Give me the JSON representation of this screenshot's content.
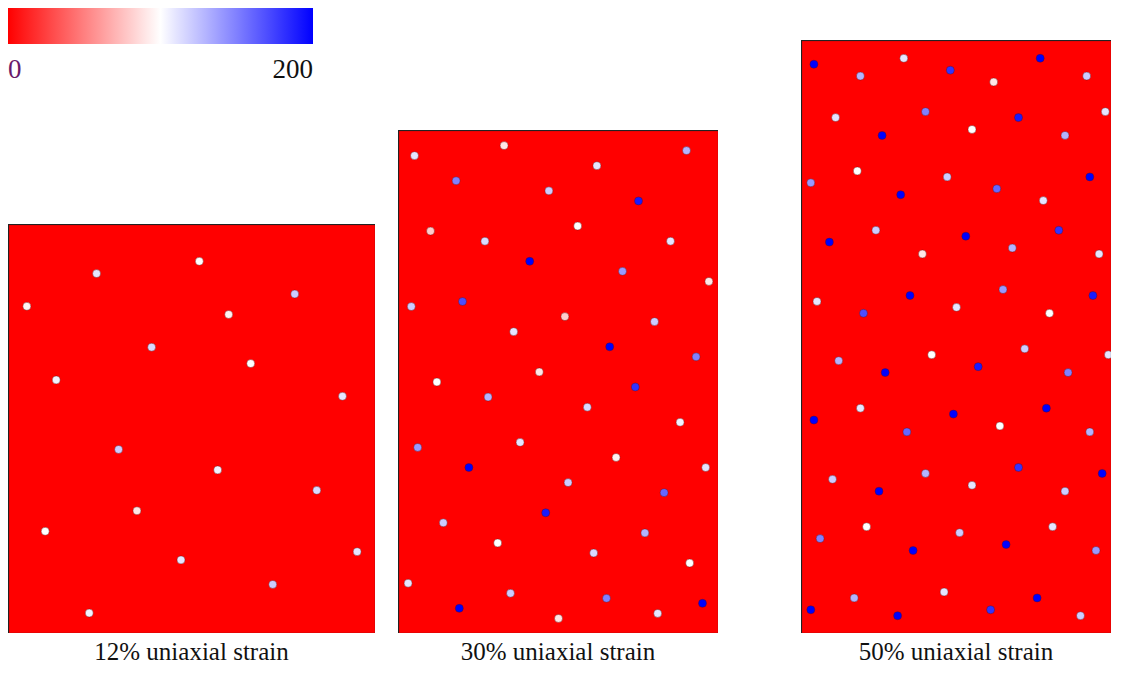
{
  "colorbar": {
    "range": [
      0,
      200
    ],
    "ticks": [
      0,
      200
    ]
  },
  "chart_data": [
    {
      "type": "scatter",
      "title": "12% uniaxial strain",
      "xlim": [
        0,
        1
      ],
      "ylim": [
        0,
        1
      ],
      "tick_labels": false,
      "background": 0,
      "points": [
        [
          0.24,
          0.88,
          110
        ],
        [
          0.52,
          0.91,
          100
        ],
        [
          0.78,
          0.83,
          120
        ],
        [
          0.13,
          0.62,
          105
        ],
        [
          0.39,
          0.7,
          115
        ],
        [
          0.66,
          0.66,
          100
        ],
        [
          0.91,
          0.58,
          110
        ],
        [
          0.3,
          0.45,
          120
        ],
        [
          0.57,
          0.4,
          105
        ],
        [
          0.84,
          0.35,
          115
        ],
        [
          0.1,
          0.25,
          100
        ],
        [
          0.47,
          0.18,
          110
        ],
        [
          0.72,
          0.12,
          120
        ],
        [
          0.22,
          0.05,
          105
        ],
        [
          0.95,
          0.2,
          110
        ],
        [
          0.6,
          0.78,
          95
        ],
        [
          0.35,
          0.3,
          90
        ],
        [
          0.05,
          0.8,
          95
        ]
      ]
    },
    {
      "type": "scatter",
      "title": "30% uniaxial strain",
      "xlim": [
        0,
        1
      ],
      "ylim": [
        0,
        1
      ],
      "tick_labels": false,
      "background": 0,
      "points": [
        [
          0.05,
          0.95,
          110
        ],
        [
          0.18,
          0.9,
          150
        ],
        [
          0.33,
          0.97,
          90
        ],
        [
          0.47,
          0.88,
          120
        ],
        [
          0.62,
          0.93,
          110
        ],
        [
          0.75,
          0.86,
          190
        ],
        [
          0.9,
          0.96,
          130
        ],
        [
          0.1,
          0.8,
          80
        ],
        [
          0.27,
          0.78,
          115
        ],
        [
          0.41,
          0.74,
          200
        ],
        [
          0.56,
          0.81,
          100
        ],
        [
          0.7,
          0.72,
          140
        ],
        [
          0.85,
          0.78,
          110
        ],
        [
          0.97,
          0.7,
          90
        ],
        [
          0.04,
          0.65,
          120
        ],
        [
          0.2,
          0.66,
          170
        ],
        [
          0.36,
          0.6,
          110
        ],
        [
          0.52,
          0.63,
          80
        ],
        [
          0.66,
          0.57,
          200
        ],
        [
          0.8,
          0.62,
          120
        ],
        [
          0.93,
          0.55,
          150
        ],
        [
          0.12,
          0.5,
          100
        ],
        [
          0.28,
          0.47,
          130
        ],
        [
          0.44,
          0.52,
          90
        ],
        [
          0.59,
          0.45,
          115
        ],
        [
          0.74,
          0.49,
          180
        ],
        [
          0.88,
          0.42,
          105
        ],
        [
          0.06,
          0.37,
          140
        ],
        [
          0.22,
          0.33,
          200
        ],
        [
          0.38,
          0.38,
          110
        ],
        [
          0.53,
          0.3,
          120
        ],
        [
          0.68,
          0.35,
          95
        ],
        [
          0.83,
          0.28,
          160
        ],
        [
          0.96,
          0.33,
          110
        ],
        [
          0.14,
          0.22,
          120
        ],
        [
          0.31,
          0.18,
          100
        ],
        [
          0.46,
          0.24,
          190
        ],
        [
          0.61,
          0.16,
          115
        ],
        [
          0.77,
          0.2,
          130
        ],
        [
          0.91,
          0.14,
          100
        ],
        [
          0.03,
          0.1,
          110
        ],
        [
          0.19,
          0.05,
          200
        ],
        [
          0.35,
          0.08,
          120
        ],
        [
          0.5,
          0.03,
          90
        ],
        [
          0.65,
          0.07,
          150
        ],
        [
          0.81,
          0.04,
          110
        ],
        [
          0.95,
          0.06,
          200
        ]
      ]
    },
    {
      "type": "scatter",
      "title": "50% uniaxial strain",
      "xlim": [
        0,
        1
      ],
      "ylim": [
        0,
        1
      ],
      "tick_labels": false,
      "background": 0,
      "points": [
        [
          0.04,
          0.96,
          200
        ],
        [
          0.19,
          0.94,
          130
        ],
        [
          0.33,
          0.97,
          110
        ],
        [
          0.48,
          0.95,
          180
        ],
        [
          0.62,
          0.93,
          90
        ],
        [
          0.77,
          0.97,
          200
        ],
        [
          0.92,
          0.94,
          120
        ],
        [
          0.11,
          0.87,
          110
        ],
        [
          0.26,
          0.84,
          200
        ],
        [
          0.4,
          0.88,
          150
        ],
        [
          0.55,
          0.85,
          100
        ],
        [
          0.7,
          0.87,
          190
        ],
        [
          0.85,
          0.84,
          130
        ],
        [
          0.98,
          0.88,
          110
        ],
        [
          0.03,
          0.76,
          140
        ],
        [
          0.18,
          0.78,
          100
        ],
        [
          0.32,
          0.74,
          200
        ],
        [
          0.47,
          0.77,
          120
        ],
        [
          0.63,
          0.75,
          160
        ],
        [
          0.78,
          0.73,
          110
        ],
        [
          0.93,
          0.77,
          200
        ],
        [
          0.09,
          0.66,
          200
        ],
        [
          0.24,
          0.68,
          120
        ],
        [
          0.39,
          0.64,
          90
        ],
        [
          0.53,
          0.67,
          200
        ],
        [
          0.68,
          0.65,
          130
        ],
        [
          0.83,
          0.68,
          180
        ],
        [
          0.96,
          0.64,
          110
        ],
        [
          0.05,
          0.56,
          110
        ],
        [
          0.2,
          0.54,
          170
        ],
        [
          0.35,
          0.57,
          200
        ],
        [
          0.5,
          0.55,
          110
        ],
        [
          0.65,
          0.58,
          140
        ],
        [
          0.8,
          0.54,
          100
        ],
        [
          0.94,
          0.57,
          190
        ],
        [
          0.12,
          0.46,
          130
        ],
        [
          0.27,
          0.44,
          200
        ],
        [
          0.42,
          0.47,
          100
        ],
        [
          0.57,
          0.45,
          190
        ],
        [
          0.72,
          0.48,
          120
        ],
        [
          0.86,
          0.44,
          150
        ],
        [
          0.99,
          0.47,
          110
        ],
        [
          0.04,
          0.36,
          200
        ],
        [
          0.19,
          0.38,
          110
        ],
        [
          0.34,
          0.34,
          160
        ],
        [
          0.49,
          0.37,
          200
        ],
        [
          0.64,
          0.35,
          100
        ],
        [
          0.79,
          0.38,
          200
        ],
        [
          0.93,
          0.34,
          130
        ],
        [
          0.1,
          0.26,
          120
        ],
        [
          0.25,
          0.24,
          200
        ],
        [
          0.4,
          0.27,
          130
        ],
        [
          0.55,
          0.25,
          110
        ],
        [
          0.7,
          0.28,
          180
        ],
        [
          0.85,
          0.24,
          120
        ],
        [
          0.97,
          0.27,
          200
        ],
        [
          0.06,
          0.16,
          150
        ],
        [
          0.21,
          0.18,
          100
        ],
        [
          0.36,
          0.14,
          200
        ],
        [
          0.51,
          0.17,
          120
        ],
        [
          0.66,
          0.15,
          200
        ],
        [
          0.81,
          0.18,
          110
        ],
        [
          0.95,
          0.14,
          140
        ],
        [
          0.03,
          0.04,
          200
        ],
        [
          0.17,
          0.06,
          130
        ],
        [
          0.31,
          0.03,
          200
        ],
        [
          0.46,
          0.07,
          110
        ],
        [
          0.61,
          0.04,
          180
        ],
        [
          0.76,
          0.06,
          200
        ],
        [
          0.9,
          0.03,
          120
        ]
      ]
    }
  ]
}
